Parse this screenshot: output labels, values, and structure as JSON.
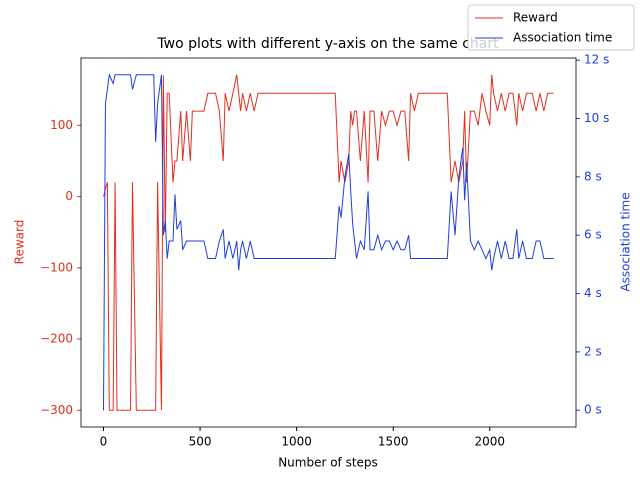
{
  "chart_data": {
    "type": "line",
    "title": "Two plots with different y-axis on the same chart",
    "xlabel": "Number of steps",
    "ylabel": "Reward",
    "y2label": "Association time",
    "x": [
      0,
      10,
      20,
      30,
      50,
      60,
      70,
      80,
      100,
      140,
      150,
      170,
      200,
      260,
      270,
      280,
      300,
      310,
      320,
      330,
      340,
      360,
      370,
      380,
      400,
      410,
      430,
      450,
      460,
      480,
      500,
      520,
      540,
      580,
      600,
      620,
      630,
      650,
      670,
      690,
      700,
      710,
      720,
      740,
      760,
      780,
      800,
      1200,
      1220,
      1230,
      1250,
      1270,
      1280,
      1290,
      1300,
      1310,
      1330,
      1350,
      1370,
      1380,
      1400,
      1420,
      1440,
      1460,
      1480,
      1500,
      1520,
      1540,
      1560,
      1580,
      1590,
      1610,
      1630,
      1700,
      1760,
      1780,
      1800,
      1820,
      1840,
      1860,
      1870,
      1880,
      1900,
      1920,
      1940,
      1960,
      1980,
      2000,
      2010,
      2020,
      2040,
      2060,
      2080,
      2100,
      2120,
      2140,
      2150,
      2170,
      2190,
      2220,
      2240,
      2260,
      2280,
      2300,
      2330
    ],
    "series": [
      {
        "name": "Reward",
        "color": "#e0301e",
        "axis": "y",
        "values": [
          0,
          10,
          20,
          -300,
          -300,
          20,
          -300,
          -300,
          -300,
          -300,
          20,
          -300,
          -300,
          -300,
          -300,
          20,
          -300,
          170,
          -50,
          145,
          145,
          20,
          50,
          50,
          120,
          50,
          120,
          50,
          120,
          120,
          120,
          120,
          145,
          145,
          120,
          50,
          145,
          120,
          145,
          171,
          145,
          120,
          145,
          120,
          145,
          120,
          145,
          145,
          20,
          50,
          20,
          50,
          120,
          100,
          120,
          120,
          50,
          120,
          20,
          120,
          120,
          50,
          120,
          100,
          120,
          120,
          100,
          120,
          120,
          50,
          145,
          120,
          145,
          145,
          145,
          145,
          20,
          50,
          20,
          50,
          120,
          20,
          120,
          120,
          100,
          145,
          120,
          100,
          171,
          145,
          120,
          145,
          120,
          145,
          145,
          100,
          145,
          120,
          145,
          145,
          120,
          145,
          120,
          145,
          145
        ]
      },
      {
        "name": "Association time",
        "color": "#1f3fdb",
        "axis": "y2",
        "values": [
          0,
          10.5,
          11,
          11.5,
          11.2,
          11.5,
          11.5,
          11.5,
          11.5,
          11.5,
          11,
          11.5,
          11.5,
          11.5,
          9.2,
          10.5,
          11.5,
          6,
          6.5,
          5.2,
          5.8,
          5.8,
          7.4,
          6.2,
          6.5,
          5.5,
          5.8,
          5.8,
          5.8,
          5.8,
          5.8,
          5.8,
          5.2,
          5.2,
          5.8,
          6.2,
          5.2,
          5.8,
          5.2,
          5.8,
          4.8,
          5.5,
          5.8,
          5.2,
          5.8,
          5.2,
          5.2,
          5.2,
          7,
          6.6,
          8,
          8.8,
          7.5,
          6.4,
          5.8,
          5.2,
          5.8,
          5.5,
          7.5,
          5.5,
          5.5,
          6,
          5.5,
          5.8,
          5.8,
          5.5,
          5.8,
          5.5,
          5.5,
          6,
          5.2,
          5.2,
          5.2,
          5.2,
          5.2,
          5.2,
          7.5,
          6,
          8,
          9,
          7.2,
          8.5,
          5.8,
          5.5,
          5.8,
          5.5,
          5.2,
          5.5,
          4.8,
          5.2,
          5.8,
          5.2,
          5.8,
          5.2,
          5.2,
          6.2,
          5.2,
          5.8,
          5.2,
          5.2,
          5.8,
          5.8,
          5.2,
          5.2,
          5.2
        ]
      }
    ],
    "xlim": [
      -116.5,
      2446.5
    ],
    "xticks": [
      0,
      500,
      1000,
      1500,
      2000
    ],
    "ylim": [
      -323.5,
      194.5
    ],
    "yticks": [
      {
        "value": -300,
        "label": "−300"
      },
      {
        "value": -200,
        "label": "−200"
      },
      {
        "value": -100,
        "label": "−100"
      },
      0,
      100
    ],
    "y2lim": [
      -0.575,
      12.075
    ],
    "y2ticks": [
      {
        "value": 0,
        "label": "0 s"
      },
      {
        "value": 2,
        "label": "2 s"
      },
      {
        "value": 4,
        "label": "4 s"
      },
      {
        "value": 6,
        "label": "6 s"
      },
      {
        "value": 8,
        "label": "8 s"
      },
      {
        "value": 10,
        "label": "10 s"
      },
      {
        "value": 12,
        "label": "12 s"
      }
    ],
    "legend": "upper right"
  }
}
